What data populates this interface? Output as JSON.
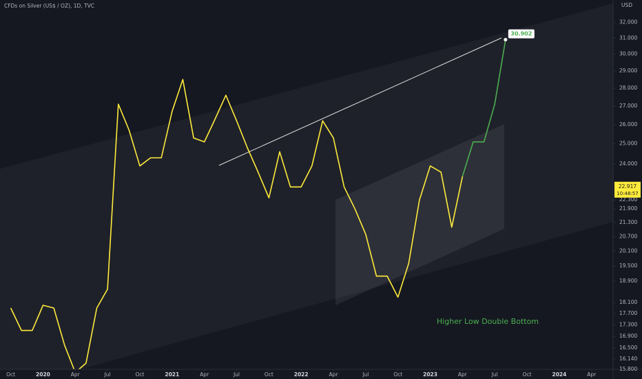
{
  "chart_data": {
    "type": "line",
    "title": "CFDs on Silver (US$ / OZ), 1D, TVC",
    "y_axis_unit": "USD",
    "annotation": "Higher Low Double Bottom",
    "log_scale": true,
    "x": [
      "2019-10",
      "2019-11",
      "2019-12",
      "2020-01",
      "2020-02",
      "2020-03",
      "2020-04",
      "2020-05",
      "2020-06",
      "2020-07",
      "2020-08",
      "2020-09",
      "2020-10",
      "2020-11",
      "2020-12",
      "2021-01",
      "2021-02",
      "2021-03",
      "2021-04",
      "2021-05",
      "2021-06",
      "2021-07",
      "2021-08",
      "2021-09",
      "2021-10",
      "2021-11",
      "2021-12",
      "2022-01",
      "2022-02",
      "2022-03",
      "2022-04",
      "2022-05",
      "2022-06",
      "2022-07",
      "2022-08",
      "2022-09",
      "2022-10",
      "2022-11",
      "2022-12",
      "2023-01",
      "2023-02",
      "2023-03",
      "2023-04",
      "2023-05",
      "2023-06",
      "2023-07",
      "2023-08"
    ],
    "series": [
      {
        "color": "#ffeb3b",
        "values": [
          17.9,
          17.1,
          17.1,
          18.0,
          17.9,
          16.6,
          15.7,
          16.0,
          17.9,
          18.6,
          27.1,
          25.7,
          23.9,
          24.3,
          24.3,
          26.7,
          28.5,
          25.3,
          25.1,
          26.3,
          27.6,
          26.2,
          24.8,
          23.6,
          22.4,
          24.6,
          22.9,
          22.9,
          23.9,
          26.2,
          25.3,
          22.9,
          21.9,
          20.8,
          19.1,
          19.1,
          18.3,
          19.6,
          22.3,
          23.9,
          23.6,
          21.1,
          23.4,
          null,
          null,
          null,
          null
        ]
      },
      {
        "color": "#4caf50",
        "values": [
          null,
          null,
          null,
          null,
          null,
          null,
          null,
          null,
          null,
          null,
          null,
          null,
          null,
          null,
          null,
          null,
          null,
          null,
          null,
          null,
          null,
          null,
          null,
          null,
          null,
          null,
          null,
          null,
          null,
          null,
          null,
          null,
          null,
          null,
          null,
          null,
          null,
          null,
          null,
          null,
          null,
          null,
          23.4,
          25.1,
          25.1,
          27.1,
          30.902
        ]
      }
    ],
    "last_price": 22.917,
    "countdown": "10:48:57",
    "xlim": [
      "2019-09",
      "2024-06"
    ],
    "xticks": [
      {
        "value": "2019-10",
        "label": "Oct"
      },
      {
        "value": "2020-01",
        "label": "2020"
      },
      {
        "value": "2020-04",
        "label": "Apr"
      },
      {
        "value": "2020-07",
        "label": "Jul"
      },
      {
        "value": "2020-10",
        "label": "Oct"
      },
      {
        "value": "2021-01",
        "label": "2021"
      },
      {
        "value": "2021-04",
        "label": "Apr"
      },
      {
        "value": "2021-07",
        "label": "Jul"
      },
      {
        "value": "2021-10",
        "label": "Oct"
      },
      {
        "value": "2022-01",
        "label": "2022"
      },
      {
        "value": "2022-04",
        "label": "Apr"
      },
      {
        "value": "2022-07",
        "label": "Jul"
      },
      {
        "value": "2022-10",
        "label": "Oct"
      },
      {
        "value": "2023-01",
        "label": "2023"
      },
      {
        "value": "2023-04",
        "label": "Apr"
      },
      {
        "value": "2023-07",
        "label": "Jul"
      },
      {
        "value": "2023-10",
        "label": "Oct"
      },
      {
        "value": "2024-01",
        "label": "2024"
      },
      {
        "value": "2024-04",
        "label": "Apr"
      }
    ],
    "ylim": [
      15.8,
      33.5
    ],
    "yticks": [
      {
        "value": 32,
        "label": "32.000"
      },
      {
        "value": 31,
        "label": "31.000"
      },
      {
        "value": 30,
        "label": "30.000"
      },
      {
        "value": 29,
        "label": "29.000"
      },
      {
        "value": 28,
        "label": "28.000"
      },
      {
        "value": 27,
        "label": "27.000"
      },
      {
        "value": 26,
        "label": "26.000"
      },
      {
        "value": 25,
        "label": "25.000"
      },
      {
        "value": 24,
        "label": "24.000"
      },
      {
        "value": 22.3,
        "label": "22.300"
      },
      {
        "value": 21.9,
        "label": "21.900"
      },
      {
        "value": 21.3,
        "label": "21.300"
      },
      {
        "value": 20.7,
        "label": "20.700"
      },
      {
        "value": 20.1,
        "label": "20.100"
      },
      {
        "value": 19.5,
        "label": "19.500"
      },
      {
        "value": 18.9,
        "label": "18.900"
      },
      {
        "value": 18.1,
        "label": "18.100"
      },
      {
        "value": 17.7,
        "label": "17.700"
      },
      {
        "value": 17.3,
        "label": "17.300"
      },
      {
        "value": 16.9,
        "label": "16.900"
      },
      {
        "value": 16.5,
        "label": "16.500"
      },
      {
        "value": 16.14,
        "label": "16.140"
      },
      {
        "value": 15.8,
        "label": "15.800"
      }
    ]
  }
}
